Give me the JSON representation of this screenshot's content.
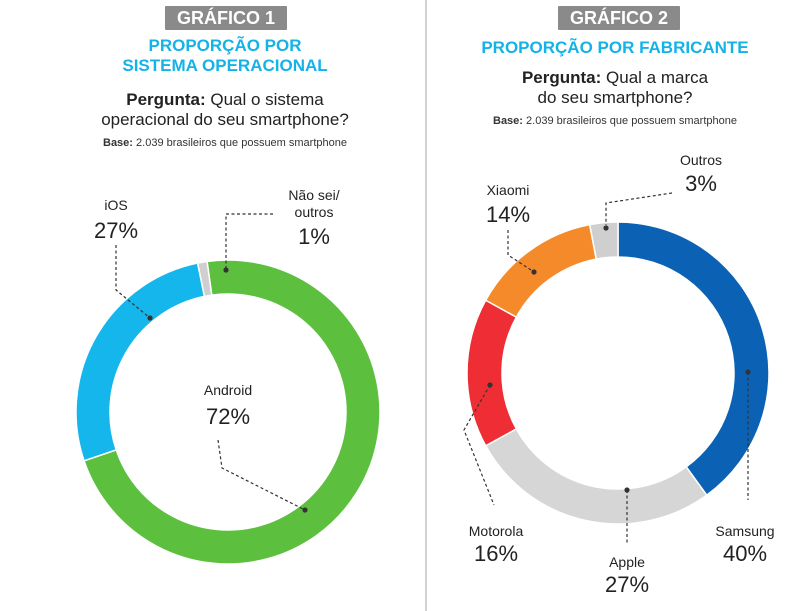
{
  "charts": [
    {
      "badge": "GRÁFICO 1",
      "subtitle_lines": [
        "PROPORÇÃO POR",
        "SISTEMA OPERACIONAL"
      ],
      "question_prefix": "Pergunta:",
      "question_lines": [
        "Qual o sistema",
        "operacional do seu smartphone?"
      ],
      "base_prefix": "Base:",
      "base_text": "2.039 brasileiros que possuem smartphone"
    },
    {
      "badge": "GRÁFICO 2",
      "subtitle_lines": [
        "PROPORÇÃO POR FABRICANTE"
      ],
      "question_prefix": "Pergunta:",
      "question_lines": [
        "Qual a marca",
        "do seu smartphone?"
      ],
      "base_prefix": "Base:",
      "base_text": "2.039 brasileiros que possuem smartphone"
    }
  ],
  "chart_data": [
    {
      "type": "pie",
      "donut": true,
      "title": "PROPORÇÃO POR SISTEMA OPERACIONAL",
      "slices": [
        {
          "label": "Android",
          "value": 72,
          "display": "72%",
          "color": "#5cbf3e"
        },
        {
          "label": "iOS",
          "value": 27,
          "display": "27%",
          "color": "#14b6ec"
        },
        {
          "label": [
            "Não sei/",
            "outros"
          ],
          "value": 1,
          "display": "1%",
          "color": "#cfcfcf"
        }
      ]
    },
    {
      "type": "pie",
      "donut": true,
      "title": "PROPORÇÃO POR FABRICANTE",
      "slices": [
        {
          "label": "Samsung",
          "value": 40,
          "display": "40%",
          "color": "#0b62b4"
        },
        {
          "label": "Apple",
          "value": 27,
          "display": "27%",
          "color": "#d6d6d6"
        },
        {
          "label": "Motorola",
          "value": 16,
          "display": "16%",
          "color": "#ee2e34"
        },
        {
          "label": "Xiaomi",
          "value": 14,
          "display": "14%",
          "color": "#f58a2a"
        },
        {
          "label": "Outros",
          "value": 3,
          "display": "3%",
          "color": "#cfcfcf"
        }
      ]
    }
  ]
}
